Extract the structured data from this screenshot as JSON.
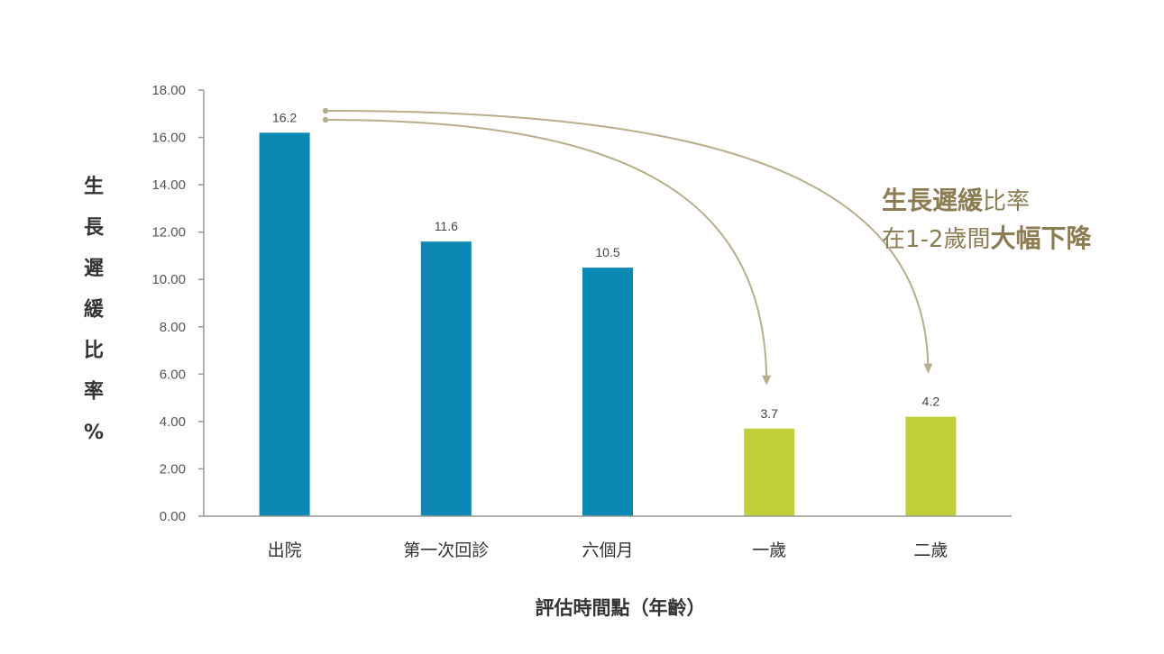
{
  "chart_data": {
    "type": "bar",
    "categories": [
      "出院",
      "第一次回診",
      "六個月",
      "一歲",
      "二歲"
    ],
    "values": [
      16.2,
      11.6,
      10.5,
      3.7,
      4.2
    ],
    "data_labels": [
      "16.2",
      "11.6",
      "10.5",
      "3.7",
      "4.2"
    ],
    "bar_colors": [
      "#0b89b4",
      "#0b89b4",
      "#0b89b4",
      "#c3cf38",
      "#c3cf38"
    ],
    "title": "",
    "xlabel": "評估時間點（年齡）",
    "ylabel": "生長遲緩比率%",
    "ylim": [
      0,
      18
    ],
    "yticks": [
      "0.00",
      "2.00",
      "4.00",
      "6.00",
      "8.00",
      "10.00",
      "12.00",
      "14.00",
      "16.00",
      "18.00"
    ],
    "grid": false,
    "annotation": {
      "line1_bold": "生長遲緩",
      "line1_normal": "比率",
      "line2_normal": "在1-2歲間",
      "line2_bold": "大幅下降",
      "color": "#8c7c52",
      "arrow_color": "#b9ad8c",
      "arrows_from": "出院",
      "arrows_to": [
        "一歲",
        "二歲"
      ]
    }
  }
}
